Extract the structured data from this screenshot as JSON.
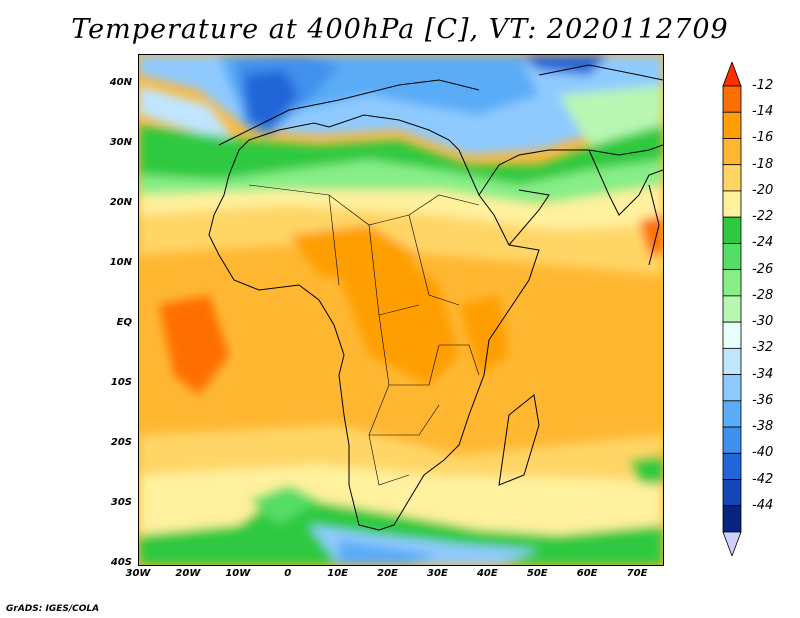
{
  "title": "Temperature at 400hPa [C], VT: 2020112709",
  "credit": "GrADS: IGES/COLA",
  "map": {
    "lat_labels": [
      "40N",
      "30N",
      "20N",
      "10N",
      "EQ",
      "10S",
      "20S",
      "30S",
      "40S"
    ],
    "lat_values": [
      40,
      30,
      20,
      10,
      0,
      -10,
      -20,
      -30,
      -40
    ],
    "lon_labels": [
      "30W",
      "20W",
      "10W",
      "0",
      "10E",
      "20E",
      "30E",
      "40E",
      "50E",
      "60E",
      "70E"
    ],
    "lon_values": [
      -30,
      -20,
      -10,
      0,
      10,
      20,
      30,
      40,
      50,
      60,
      70
    ],
    "lon_range": [
      -30,
      75
    ],
    "lat_range": [
      -40,
      45
    ]
  },
  "colorbar": {
    "labels": [
      "-12",
      "-14",
      "-16",
      "-18",
      "-20",
      "-22",
      "-24",
      "-26",
      "-28",
      "-30",
      "-32",
      "-34",
      "-36",
      "-38",
      "-40",
      "-42",
      "-44"
    ],
    "colors_warm_to_cold": [
      "#ff3000",
      "#ff6e00",
      "#ff9e00",
      "#ffb732",
      "#ffd666",
      "#fff19e",
      "#2ec940",
      "#55dd66",
      "#88ee88",
      "#b8f7b2",
      "#e8fffa",
      "#bfe5ff",
      "#8fcaff",
      "#5aacf7",
      "#3f90ee",
      "#2265d8",
      "#1446b8",
      "#08247f",
      "#d0d0ff"
    ]
  }
}
